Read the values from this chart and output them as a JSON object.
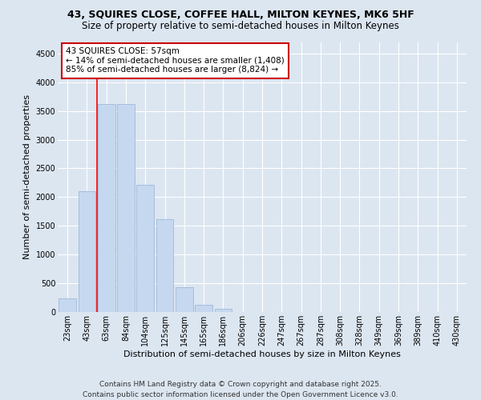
{
  "title": "43, SQUIRES CLOSE, COFFEE HALL, MILTON KEYNES, MK6 5HF",
  "subtitle": "Size of property relative to semi-detached houses in Milton Keynes",
  "xlabel": "Distribution of semi-detached houses by size in Milton Keynes",
  "ylabel": "Number of semi-detached properties",
  "categories": [
    "23sqm",
    "43sqm",
    "63sqm",
    "84sqm",
    "104sqm",
    "125sqm",
    "145sqm",
    "165sqm",
    "186sqm",
    "206sqm",
    "226sqm",
    "247sqm",
    "267sqm",
    "287sqm",
    "308sqm",
    "328sqm",
    "349sqm",
    "369sqm",
    "389sqm",
    "410sqm",
    "430sqm"
  ],
  "values": [
    230,
    2100,
    3620,
    3620,
    2220,
    1620,
    430,
    120,
    60,
    0,
    0,
    0,
    0,
    0,
    0,
    0,
    0,
    0,
    0,
    0,
    0
  ],
  "bar_color": "#c5d8f0",
  "bar_edge_color": "#a0b8d8",
  "ylim": [
    0,
    4700
  ],
  "yticks": [
    0,
    500,
    1000,
    1500,
    2000,
    2500,
    3000,
    3500,
    4000,
    4500
  ],
  "red_line_x": 1.5,
  "annotation_title": "43 SQUIRES CLOSE: 57sqm",
  "annotation_line1": "← 14% of semi-detached houses are smaller (1,408)",
  "annotation_line2": "85% of semi-detached houses are larger (8,824) →",
  "annotation_box_color": "#ffffff",
  "annotation_box_edge": "#cc0000",
  "background_color": "#dce6f1",
  "footer": "Contains HM Land Registry data © Crown copyright and database right 2025.\nContains public sector information licensed under the Open Government Licence v3.0.",
  "title_fontsize": 9,
  "subtitle_fontsize": 8.5,
  "axis_label_fontsize": 8,
  "tick_fontsize": 7,
  "annotation_fontsize": 7.5,
  "footer_fontsize": 6.5
}
